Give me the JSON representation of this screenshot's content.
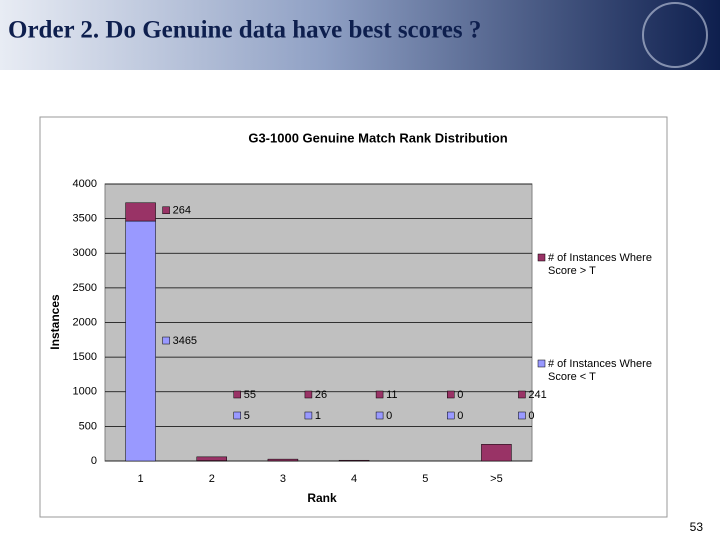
{
  "header": {
    "title": "Order 2. Do Genuine data have best scores ?"
  },
  "page_number": "53",
  "chart_data": {
    "type": "stacked-bar",
    "title": "G3-1000 Genuine Match Rank Distribution",
    "x_label": "Rank",
    "y_label": "Instances",
    "categories": [
      "1",
      "2",
      "3",
      "4",
      "5",
      ">5"
    ],
    "series": [
      {
        "name": "# of Instances Where Score < T",
        "color": "#9999ff",
        "values": [
          3465,
          5,
          1,
          0,
          0,
          0
        ]
      },
      {
        "name": "# of Instances Where Score > T",
        "color": "#993366",
        "values": [
          264,
          55,
          26,
          11,
          0,
          241
        ]
      }
    ],
    "ylim": [
      0,
      4000
    ],
    "yticks": [
      0,
      500,
      1000,
      1500,
      2000,
      2500,
      3000,
      3500,
      4000
    ],
    "grid": true,
    "legend": "right"
  }
}
